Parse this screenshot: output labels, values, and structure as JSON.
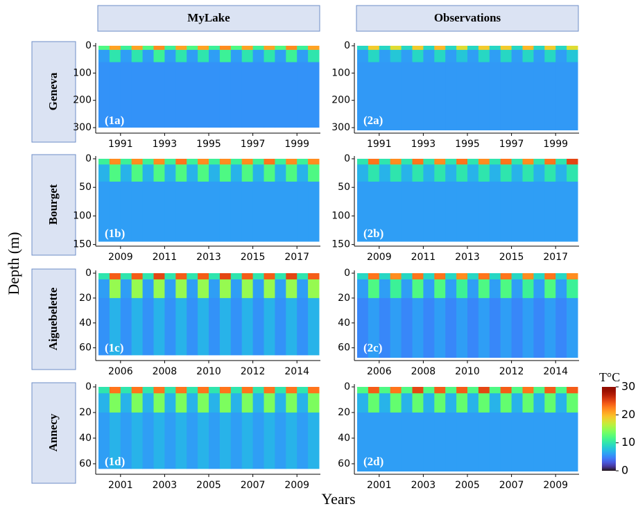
{
  "figure": {
    "columns": [
      "MyLake",
      "Observations"
    ],
    "rows": [
      "Geneva",
      "Bourget",
      "Aiguebelette",
      "Annecy"
    ],
    "xlabel": "Years",
    "ylabel": "Depth (m)",
    "colorbar": {
      "label": "T°C",
      "lim": [
        0,
        30
      ],
      "ticks": [
        0,
        10,
        20,
        30
      ]
    }
  },
  "chart_data": [
    {
      "type": "heatmap",
      "label": "(1a)",
      "xlim": [
        1990,
        2000
      ],
      "xticks": [
        1991,
        1993,
        1995,
        1997,
        1999
      ],
      "ylim": [
        0,
        310
      ],
      "yticks": [
        0,
        100,
        200,
        300
      ],
      "ybins": [
        0,
        15,
        60,
        300
      ],
      "z": [
        [
          12,
          21,
          11,
          21,
          12,
          22,
          11,
          21,
          12,
          21,
          11,
          22,
          12,
          21,
          11,
          21,
          12,
          22,
          11,
          21
        ],
        [
          6,
          10,
          6,
          10,
          6,
          11,
          6,
          10,
          6,
          10,
          6,
          11,
          6,
          10,
          6,
          10,
          6,
          11,
          6,
          10
        ],
        [
          5.5,
          5.5,
          5.5,
          5.5,
          5.5,
          5.5,
          5.5,
          5.5,
          5.5,
          5.5,
          5.5,
          5.5,
          5.5,
          5.5,
          5.5,
          5.5,
          5.5,
          5.5,
          5.5,
          5.5
        ]
      ]
    },
    {
      "type": "heatmap",
      "label": "(2a)",
      "xlim": [
        1990,
        2000
      ],
      "xticks": [
        1991,
        1993,
        1995,
        1997,
        1999
      ],
      "ylim": [
        0,
        310
      ],
      "yticks": [
        0,
        100,
        200,
        300
      ],
      "ybins": [
        0,
        15,
        60,
        310
      ],
      "z": [
        [
          9,
          19,
          9,
          18,
          9,
          19,
          9,
          20,
          9,
          18,
          9,
          19,
          9,
          19,
          9,
          20,
          9,
          19,
          9,
          18
        ],
        [
          6,
          9,
          6,
          8,
          6,
          9,
          6,
          9,
          6,
          8,
          6,
          9,
          6,
          9,
          6,
          9,
          6,
          9,
          6,
          8
        ],
        [
          5.8,
          5.8,
          5.8,
          5.8,
          5.8,
          5.8,
          5.8,
          5.8,
          5.8,
          5.8,
          5.8,
          5.8,
          5.8,
          5.8,
          5.8,
          5.8,
          5.8,
          5.8,
          5.8,
          5.8
        ]
      ]
    },
    {
      "type": "heatmap",
      "label": "(1b)",
      "xlim": [
        2008,
        2018
      ],
      "xticks": [
        2009,
        2011,
        2013,
        2015,
        2017
      ],
      "ylim": [
        0,
        148
      ],
      "yticks": [
        0,
        50,
        100,
        150
      ],
      "ybins": [
        0,
        10,
        40,
        145
      ],
      "z": [
        [
          11,
          22,
          11,
          22,
          11,
          22,
          11,
          23,
          11,
          22,
          11,
          22,
          11,
          22,
          11,
          23,
          11,
          22,
          11,
          22
        ],
        [
          7,
          12,
          7,
          12,
          7,
          12,
          7,
          12,
          7,
          12,
          7,
          12,
          7,
          12,
          7,
          12,
          7,
          12,
          7,
          12
        ],
        [
          6,
          6,
          6,
          6,
          6,
          6,
          6,
          6,
          6,
          6,
          6,
          6,
          6,
          6,
          6,
          6,
          6,
          6,
          6,
          6
        ]
      ]
    },
    {
      "type": "heatmap",
      "label": "(2b)",
      "xlim": [
        2008,
        2018
      ],
      "xticks": [
        2009,
        2011,
        2013,
        2015,
        2017
      ],
      "ylim": [
        0,
        148
      ],
      "yticks": [
        0,
        50,
        100,
        150
      ],
      "ybins": [
        0,
        10,
        40,
        145
      ],
      "z": [
        [
          10,
          23,
          10,
          22,
          10,
          23,
          10,
          22,
          10,
          23,
          10,
          22,
          10,
          23,
          10,
          22,
          10,
          23,
          10,
          25
        ],
        [
          7,
          10,
          7,
          10,
          7,
          10,
          7,
          10,
          7,
          10,
          7,
          10,
          7,
          10,
          7,
          10,
          7,
          10,
          7,
          10
        ],
        [
          6,
          6,
          6,
          6,
          6,
          6,
          6,
          6,
          6,
          6,
          6,
          6,
          6,
          6,
          6,
          6,
          6,
          6,
          6,
          6
        ]
      ]
    },
    {
      "type": "heatmap",
      "label": "(1c)",
      "xlim": [
        2005,
        2015
      ],
      "xticks": [
        2006,
        2008,
        2010,
        2012,
        2014
      ],
      "ylim": [
        0,
        68
      ],
      "yticks": [
        0,
        20,
        40,
        60
      ],
      "ybins": [
        0,
        5,
        20,
        66
      ],
      "z": [
        [
          10,
          24,
          10,
          24,
          10,
          25,
          10,
          24,
          10,
          24,
          10,
          25,
          10,
          24,
          10,
          24,
          10,
          25,
          10,
          24
        ],
        [
          6,
          15,
          6,
          15,
          6,
          15,
          6,
          15,
          6,
          15,
          6,
          15,
          6,
          15,
          6,
          15,
          6,
          15,
          6,
          15
        ],
        [
          5.5,
          7,
          5.5,
          7,
          5.5,
          7,
          5.5,
          7,
          5.5,
          7,
          5.5,
          7,
          5.5,
          7,
          5.5,
          7,
          5.5,
          7,
          5.5,
          7
        ]
      ]
    },
    {
      "type": "heatmap",
      "label": "(2c)",
      "xlim": [
        2005,
        2015
      ],
      "xticks": [
        2006,
        2008,
        2010,
        2012,
        2014
      ],
      "ylim": [
        0,
        68
      ],
      "yticks": [
        0,
        20,
        40,
        60
      ],
      "ybins": [
        0,
        5,
        20,
        68
      ],
      "z": [
        [
          9,
          23,
          9,
          22,
          9,
          23,
          9,
          23,
          9,
          22,
          9,
          23,
          9,
          23,
          9,
          22,
          9,
          23,
          9,
          22
        ],
        [
          6,
          12,
          6,
          11,
          6,
          12,
          6,
          12,
          6,
          11,
          6,
          12,
          6,
          12,
          6,
          11,
          6,
          12,
          6,
          11
        ],
        [
          5,
          6,
          5,
          6,
          5,
          6,
          5,
          6,
          5,
          6,
          5,
          6,
          5,
          6,
          5,
          6,
          5,
          6,
          5,
          6
        ]
      ]
    },
    {
      "type": "heatmap",
      "label": "(1d)",
      "xlim": [
        2000,
        2010
      ],
      "xticks": [
        2001,
        2003,
        2005,
        2007,
        2009
      ],
      "ylim": [
        0,
        66
      ],
      "yticks": [
        0,
        20,
        40,
        60
      ],
      "ybins": [
        0,
        5,
        20,
        64
      ],
      "z": [
        [
          10,
          23,
          10,
          23,
          10,
          23,
          10,
          23,
          10,
          23,
          10,
          23,
          10,
          23,
          10,
          23,
          10,
          23,
          10,
          23
        ],
        [
          7,
          14,
          7,
          14,
          7,
          14,
          7,
          14,
          7,
          14,
          7,
          14,
          7,
          14,
          7,
          14,
          7,
          14,
          7,
          14
        ],
        [
          6,
          7,
          6,
          7,
          6,
          7,
          6,
          7,
          6,
          7,
          6,
          7,
          6,
          7,
          6,
          7,
          6,
          7,
          6,
          7
        ]
      ]
    },
    {
      "type": "heatmap",
      "label": "(2d)",
      "xlim": [
        2000,
        2010
      ],
      "xticks": [
        2001,
        2003,
        2005,
        2007,
        2009
      ],
      "ylim": [
        0,
        66
      ],
      "yticks": [
        0,
        20,
        40,
        60
      ],
      "ybins": [
        0,
        5,
        20,
        66
      ],
      "z": [
        [
          12,
          24,
          12,
          23,
          12,
          25,
          12,
          24,
          12,
          24,
          12,
          25,
          12,
          24,
          12,
          23,
          12,
          24,
          12,
          24
        ],
        [
          7,
          13,
          7,
          13,
          7,
          13,
          7,
          13,
          7,
          13,
          7,
          13,
          7,
          13,
          7,
          13,
          7,
          13,
          7,
          13
        ],
        [
          6,
          6,
          6,
          6,
          6,
          6,
          6,
          6,
          6,
          6,
          6,
          6,
          6,
          6,
          6,
          6,
          6,
          6,
          6,
          6
        ]
      ]
    }
  ]
}
